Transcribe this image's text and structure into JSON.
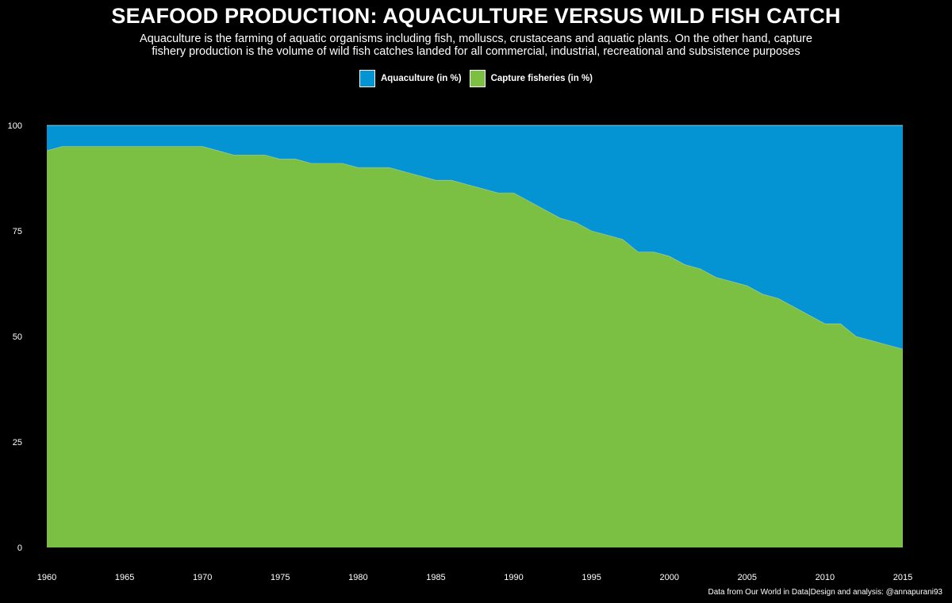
{
  "header": {
    "title": "SEAFOOD PRODUCTION: AQUACULTURE VERSUS WILD FISH CATCH",
    "subtitle_line1": "Aquaculture is the farming of aquatic organisms including fish, molluscs, crustaceans and aquatic plants. On the other hand, capture",
    "subtitle_line2": "fishery production is the volume of wild fish catches landed for all commercial, industrial, recreational and subsistence purposes"
  },
  "legend": [
    {
      "label": "Aquaculture (in %)",
      "color": "#0493d3"
    },
    {
      "label": "Capture fisheries (in %)",
      "color": "#7bc043"
    }
  ],
  "caption": "Data from Our World in Data|Design and analysis: @annapurani93",
  "chart_data": {
    "type": "area",
    "stacked": true,
    "title": "SEAFOOD PRODUCTION: AQUACULTURE VERSUS WILD FISH CATCH",
    "xlabel": "",
    "ylabel": "",
    "xlim": [
      1960,
      2015
    ],
    "ylim": [
      0,
      100
    ],
    "x_ticks": [
      1960,
      1965,
      1970,
      1975,
      1980,
      1985,
      1990,
      1995,
      2000,
      2005,
      2010,
      2015
    ],
    "y_ticks": [
      0,
      25,
      50,
      75,
      100
    ],
    "grid": false,
    "legend_position": "top",
    "x": [
      1960,
      1961,
      1962,
      1963,
      1964,
      1965,
      1966,
      1967,
      1968,
      1969,
      1970,
      1971,
      1972,
      1973,
      1974,
      1975,
      1976,
      1977,
      1978,
      1979,
      1980,
      1981,
      1982,
      1983,
      1984,
      1985,
      1986,
      1987,
      1988,
      1989,
      1990,
      1991,
      1992,
      1993,
      1994,
      1995,
      1996,
      1997,
      1998,
      1999,
      2000,
      2001,
      2002,
      2003,
      2004,
      2005,
      2006,
      2007,
      2008,
      2009,
      2010,
      2011,
      2012,
      2013,
      2014,
      2015
    ],
    "series": [
      {
        "name": "Capture fisheries (in %)",
        "color": "#7bc043",
        "values": [
          94,
          95,
          95,
          95,
          95,
          95,
          95,
          95,
          95,
          95,
          95,
          94,
          93,
          93,
          93,
          92,
          92,
          91,
          91,
          91,
          90,
          90,
          90,
          89,
          88,
          87,
          87,
          86,
          85,
          84,
          84,
          82,
          80,
          78,
          77,
          75,
          74,
          73,
          70,
          70,
          69,
          67,
          66,
          64,
          63,
          62,
          60,
          59,
          57,
          55,
          53,
          53,
          50,
          49,
          48,
          47
        ]
      },
      {
        "name": "Aquaculture (in %)",
        "color": "#0493d3",
        "values": [
          6,
          5,
          5,
          5,
          5,
          5,
          5,
          5,
          5,
          5,
          5,
          6,
          7,
          7,
          7,
          8,
          8,
          9,
          9,
          9,
          10,
          10,
          10,
          11,
          12,
          13,
          13,
          14,
          15,
          16,
          16,
          18,
          20,
          22,
          23,
          25,
          26,
          27,
          30,
          30,
          31,
          33,
          34,
          36,
          37,
          38,
          40,
          41,
          43,
          45,
          47,
          47,
          50,
          51,
          52,
          53
        ]
      }
    ]
  }
}
